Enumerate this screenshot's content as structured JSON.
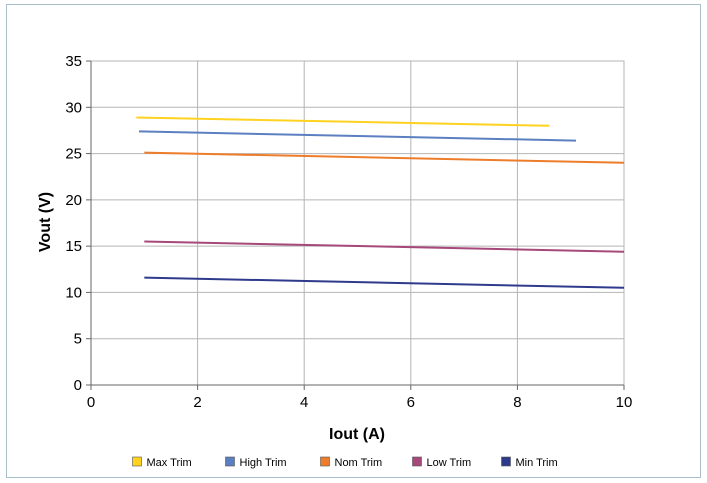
{
  "chart_data": {
    "type": "line",
    "xlabel": "Iout (A)",
    "ylabel": "Vout (V)",
    "xlim": [
      0,
      10
    ],
    "ylim": [
      0,
      35
    ],
    "xticks": [
      0,
      2,
      4,
      6,
      8,
      10
    ],
    "yticks": [
      0,
      5,
      10,
      15,
      20,
      25,
      30,
      35
    ],
    "grid": true,
    "legend_position": "bottom",
    "series": [
      {
        "name": "Max Trim",
        "color": "#FFD21F",
        "x": [
          0.85,
          8.6
        ],
        "y": [
          28.9,
          28.0
        ]
      },
      {
        "name": "High Trim",
        "color": "#5B7FC0",
        "x": [
          0.9,
          9.1
        ],
        "y": [
          27.4,
          26.4
        ]
      },
      {
        "name": "Nom Trim",
        "color": "#EE7D2B",
        "x": [
          1.0,
          10.0
        ],
        "y": [
          25.1,
          24.0
        ]
      },
      {
        "name": "Low Trim",
        "color": "#A6487A",
        "x": [
          1.0,
          10.0
        ],
        "y": [
          15.5,
          14.4
        ]
      },
      {
        "name": "Min Trim",
        "color": "#2E3A8C",
        "x": [
          1.0,
          10.0
        ],
        "y": [
          11.6,
          10.5
        ]
      }
    ]
  }
}
